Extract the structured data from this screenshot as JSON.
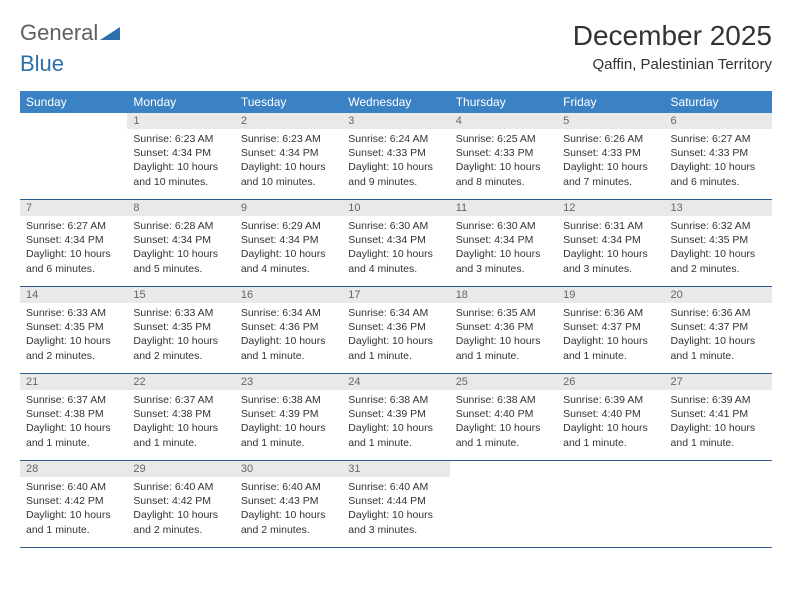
{
  "logo": {
    "general": "General",
    "blue": "Blue"
  },
  "title": "December 2025",
  "location": "Qaffin, Palestinian Territory",
  "colors": {
    "header_bg": "#3b82c4",
    "header_fg": "#ffffff",
    "daynum_bg": "#e9e9e9",
    "daynum_fg": "#666666",
    "rule": "#2a5d8f",
    "text": "#333333",
    "logo_icon": "#2b6fab"
  },
  "weekdays": [
    "Sunday",
    "Monday",
    "Tuesday",
    "Wednesday",
    "Thursday",
    "Friday",
    "Saturday"
  ],
  "weeks": [
    [
      null,
      {
        "n": "1",
        "sr": "6:23 AM",
        "ss": "4:34 PM",
        "dl": "10 hours and 10 minutes."
      },
      {
        "n": "2",
        "sr": "6:23 AM",
        "ss": "4:34 PM",
        "dl": "10 hours and 10 minutes."
      },
      {
        "n": "3",
        "sr": "6:24 AM",
        "ss": "4:33 PM",
        "dl": "10 hours and 9 minutes."
      },
      {
        "n": "4",
        "sr": "6:25 AM",
        "ss": "4:33 PM",
        "dl": "10 hours and 8 minutes."
      },
      {
        "n": "5",
        "sr": "6:26 AM",
        "ss": "4:33 PM",
        "dl": "10 hours and 7 minutes."
      },
      {
        "n": "6",
        "sr": "6:27 AM",
        "ss": "4:33 PM",
        "dl": "10 hours and 6 minutes."
      }
    ],
    [
      {
        "n": "7",
        "sr": "6:27 AM",
        "ss": "4:34 PM",
        "dl": "10 hours and 6 minutes."
      },
      {
        "n": "8",
        "sr": "6:28 AM",
        "ss": "4:34 PM",
        "dl": "10 hours and 5 minutes."
      },
      {
        "n": "9",
        "sr": "6:29 AM",
        "ss": "4:34 PM",
        "dl": "10 hours and 4 minutes."
      },
      {
        "n": "10",
        "sr": "6:30 AM",
        "ss": "4:34 PM",
        "dl": "10 hours and 4 minutes."
      },
      {
        "n": "11",
        "sr": "6:30 AM",
        "ss": "4:34 PM",
        "dl": "10 hours and 3 minutes."
      },
      {
        "n": "12",
        "sr": "6:31 AM",
        "ss": "4:34 PM",
        "dl": "10 hours and 3 minutes."
      },
      {
        "n": "13",
        "sr": "6:32 AM",
        "ss": "4:35 PM",
        "dl": "10 hours and 2 minutes."
      }
    ],
    [
      {
        "n": "14",
        "sr": "6:33 AM",
        "ss": "4:35 PM",
        "dl": "10 hours and 2 minutes."
      },
      {
        "n": "15",
        "sr": "6:33 AM",
        "ss": "4:35 PM",
        "dl": "10 hours and 2 minutes."
      },
      {
        "n": "16",
        "sr": "6:34 AM",
        "ss": "4:36 PM",
        "dl": "10 hours and 1 minute."
      },
      {
        "n": "17",
        "sr": "6:34 AM",
        "ss": "4:36 PM",
        "dl": "10 hours and 1 minute."
      },
      {
        "n": "18",
        "sr": "6:35 AM",
        "ss": "4:36 PM",
        "dl": "10 hours and 1 minute."
      },
      {
        "n": "19",
        "sr": "6:36 AM",
        "ss": "4:37 PM",
        "dl": "10 hours and 1 minute."
      },
      {
        "n": "20",
        "sr": "6:36 AM",
        "ss": "4:37 PM",
        "dl": "10 hours and 1 minute."
      }
    ],
    [
      {
        "n": "21",
        "sr": "6:37 AM",
        "ss": "4:38 PM",
        "dl": "10 hours and 1 minute."
      },
      {
        "n": "22",
        "sr": "6:37 AM",
        "ss": "4:38 PM",
        "dl": "10 hours and 1 minute."
      },
      {
        "n": "23",
        "sr": "6:38 AM",
        "ss": "4:39 PM",
        "dl": "10 hours and 1 minute."
      },
      {
        "n": "24",
        "sr": "6:38 AM",
        "ss": "4:39 PM",
        "dl": "10 hours and 1 minute."
      },
      {
        "n": "25",
        "sr": "6:38 AM",
        "ss": "4:40 PM",
        "dl": "10 hours and 1 minute."
      },
      {
        "n": "26",
        "sr": "6:39 AM",
        "ss": "4:40 PM",
        "dl": "10 hours and 1 minute."
      },
      {
        "n": "27",
        "sr": "6:39 AM",
        "ss": "4:41 PM",
        "dl": "10 hours and 1 minute."
      }
    ],
    [
      {
        "n": "28",
        "sr": "6:40 AM",
        "ss": "4:42 PM",
        "dl": "10 hours and 1 minute."
      },
      {
        "n": "29",
        "sr": "6:40 AM",
        "ss": "4:42 PM",
        "dl": "10 hours and 2 minutes."
      },
      {
        "n": "30",
        "sr": "6:40 AM",
        "ss": "4:43 PM",
        "dl": "10 hours and 2 minutes."
      },
      {
        "n": "31",
        "sr": "6:40 AM",
        "ss": "4:44 PM",
        "dl": "10 hours and 3 minutes."
      },
      null,
      null,
      null
    ]
  ]
}
